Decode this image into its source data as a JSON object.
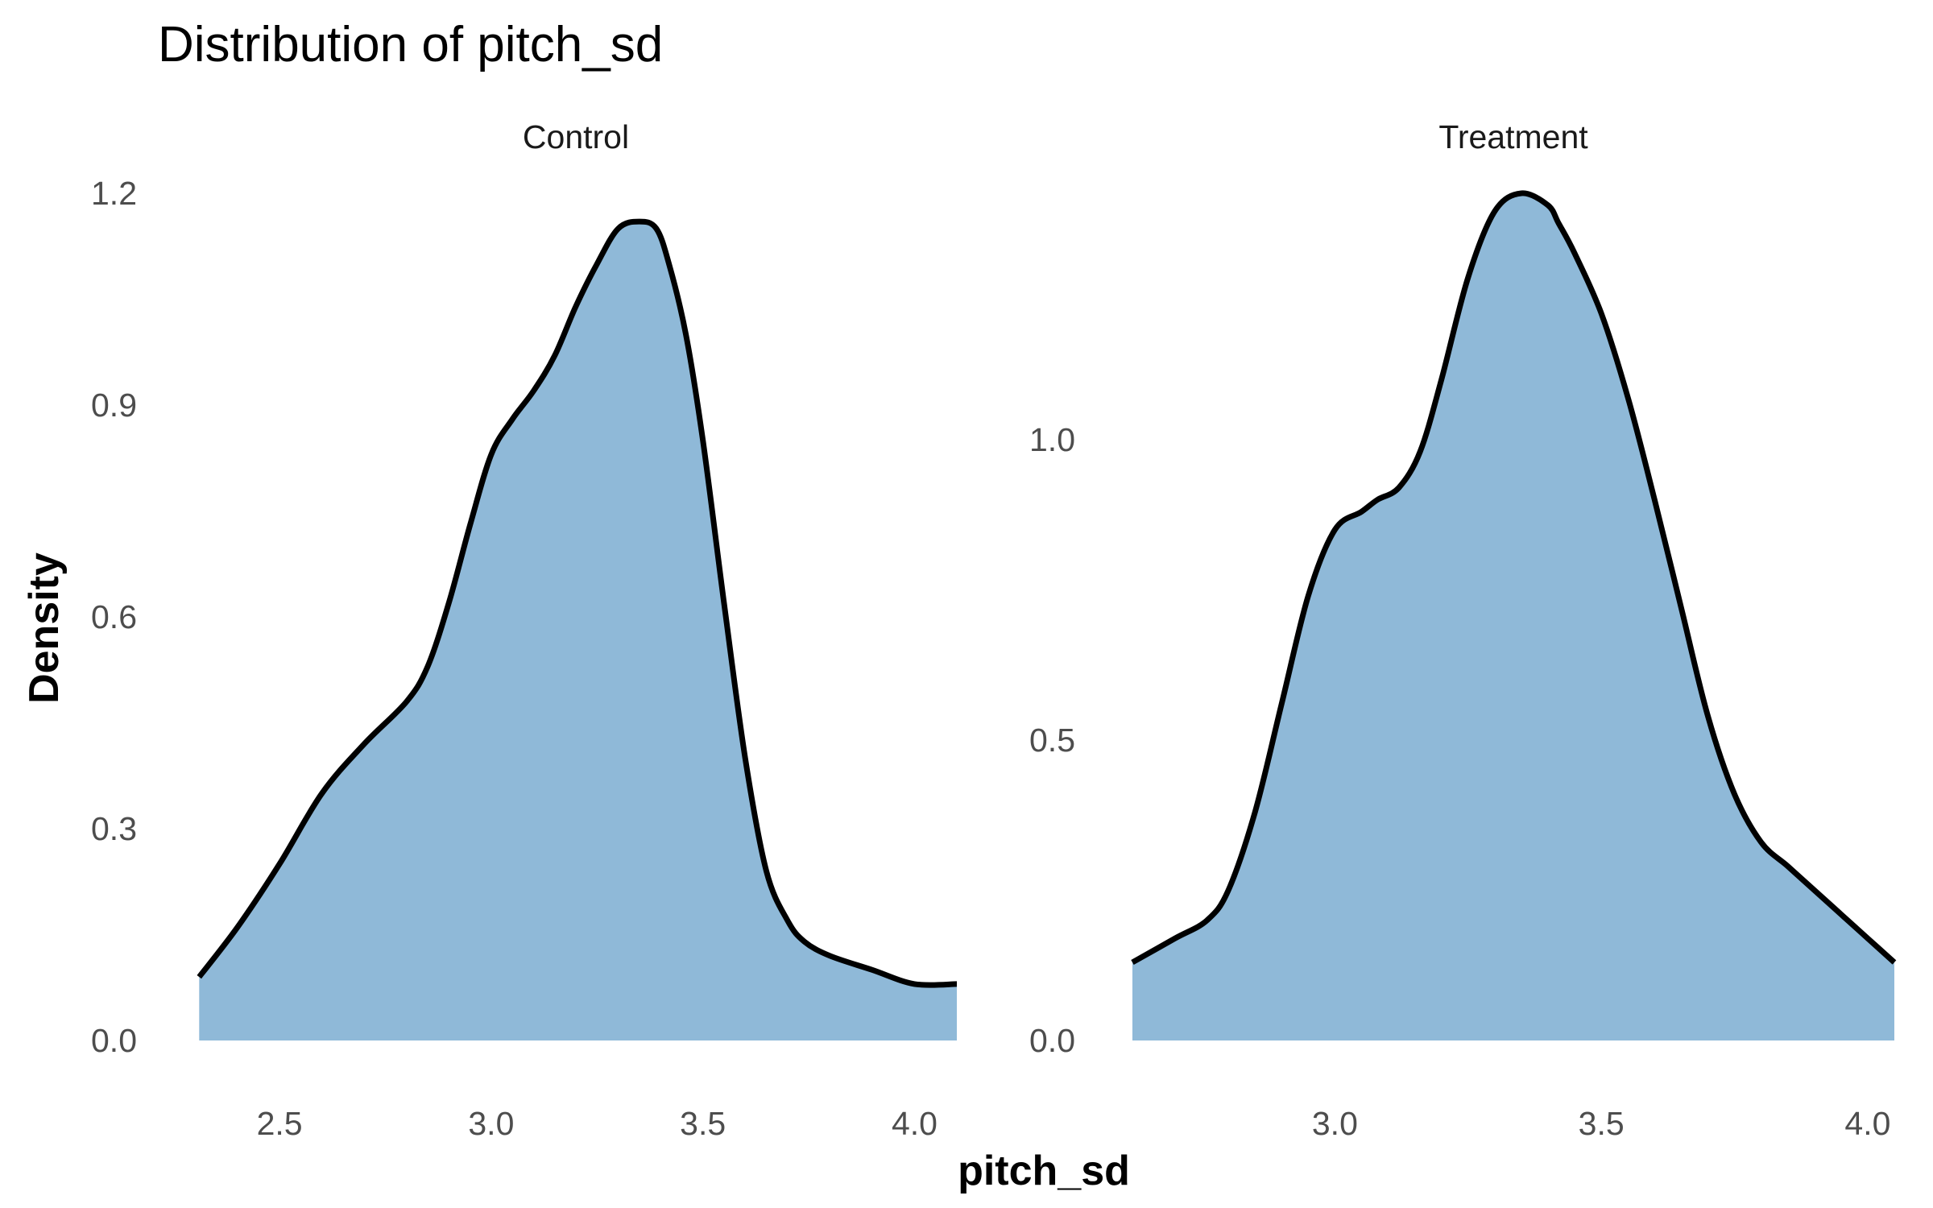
{
  "chart_data": {
    "type": "area",
    "title": "Distribution of pitch_sd",
    "xlabel": "pitch_sd",
    "ylabel": "Density",
    "grid": false,
    "legend": "none",
    "fill_color": "#8FB9D8",
    "line_color": "#000000",
    "panels": [
      {
        "name": "Control",
        "xlim": [
          2.3,
          4.1
        ],
        "ylim": [
          0.0,
          1.2
        ],
        "x_ticks": [
          "2.5",
          "3.0",
          "3.5",
          "4.0"
        ],
        "x_tick_values": [
          2.5,
          3.0,
          3.5,
          4.0
        ],
        "y_ticks": [
          "0.0",
          "0.3",
          "0.6",
          "0.9",
          "1.2"
        ],
        "y_tick_values": [
          0.0,
          0.3,
          0.6,
          0.9,
          1.2
        ],
        "x": [
          2.31,
          2.4,
          2.5,
          2.6,
          2.7,
          2.8,
          2.85,
          2.9,
          2.95,
          3.0,
          3.05,
          3.1,
          3.15,
          3.2,
          3.25,
          3.3,
          3.35,
          3.39,
          3.42,
          3.46,
          3.5,
          3.55,
          3.6,
          3.65,
          3.7,
          3.74,
          3.8,
          3.9,
          4.0,
          4.1
        ],
        "y": [
          0.09,
          0.16,
          0.25,
          0.35,
          0.42,
          0.48,
          0.53,
          0.62,
          0.73,
          0.83,
          0.88,
          0.92,
          0.97,
          1.04,
          1.1,
          1.15,
          1.16,
          1.15,
          1.1,
          1.0,
          0.85,
          0.62,
          0.4,
          0.24,
          0.17,
          0.14,
          0.12,
          0.1,
          0.08,
          0.08
        ]
      },
      {
        "name": "Treatment",
        "xlim": [
          2.62,
          4.05
        ],
        "ylim": [
          0.0,
          1.41
        ],
        "x_ticks": [
          "3.0",
          "3.5",
          "4.0"
        ],
        "x_tick_values": [
          3.0,
          3.5,
          4.0
        ],
        "y_ticks": [
          "0.0",
          "0.5",
          "1.0"
        ],
        "y_tick_values": [
          0.0,
          0.5,
          1.0
        ],
        "x": [
          2.62,
          2.7,
          2.76,
          2.8,
          2.85,
          2.9,
          2.95,
          3.0,
          3.05,
          3.08,
          3.12,
          3.16,
          3.2,
          3.25,
          3.3,
          3.35,
          3.4,
          3.42,
          3.45,
          3.5,
          3.55,
          3.6,
          3.65,
          3.7,
          3.75,
          3.8,
          3.85,
          3.9,
          3.95,
          4.0,
          4.05
        ],
        "y": [
          0.13,
          0.17,
          0.2,
          0.25,
          0.38,
          0.56,
          0.74,
          0.85,
          0.88,
          0.9,
          0.92,
          0.98,
          1.1,
          1.27,
          1.38,
          1.41,
          1.39,
          1.36,
          1.31,
          1.21,
          1.07,
          0.9,
          0.72,
          0.54,
          0.41,
          0.33,
          0.29,
          0.25,
          0.21,
          0.17,
          0.13
        ]
      }
    ]
  }
}
